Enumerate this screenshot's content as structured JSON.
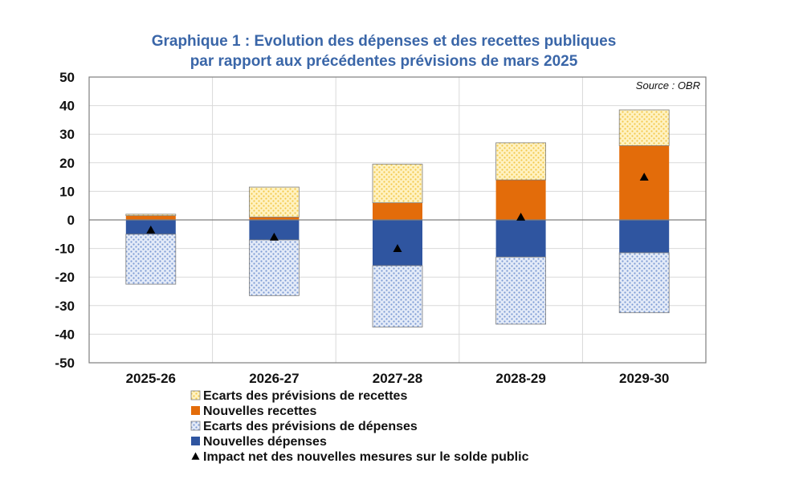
{
  "chart_data": {
    "type": "bar",
    "stacked": true,
    "title": "Graphique 1 : Evolution des dépenses et des recettes publiques",
    "subtitle": "par rapport aux précédentes prévisions de mars 2025",
    "source": "Source : OBR",
    "categories": [
      "2025-26",
      "2026-27",
      "2027-28",
      "2028-29",
      "2029-30"
    ],
    "ylim": [
      -50,
      50
    ],
    "yticks": [
      50,
      40,
      30,
      20,
      10,
      0,
      -10,
      -20,
      -30,
      -40,
      -50
    ],
    "grid": true,
    "series": [
      {
        "key": "ecarts_recettes",
        "name": "Ecarts des prévisions de recettes",
        "color": "#fde9a8",
        "pattern": "dots-yellow",
        "values": [
          0.5,
          10.5,
          13.5,
          13,
          12.5
        ]
      },
      {
        "key": "nouvelles_recettes",
        "name": "Nouvelles recettes",
        "color": "#e36c0a",
        "pattern": "solid",
        "values": [
          1.5,
          1,
          6,
          14,
          26
        ]
      },
      {
        "key": "ecarts_depenses",
        "name": "Ecarts des prévisions de dépenses",
        "color": "#c5d3ee",
        "pattern": "dots-blue",
        "values": [
          -17.5,
          -19.5,
          -21.5,
          -23.5,
          -21
        ]
      },
      {
        "key": "nouvelles_depenses",
        "name": "Nouvelles dépenses",
        "color": "#2f55a0",
        "pattern": "solid",
        "values": [
          -5,
          -7,
          -16,
          -13,
          -11.5
        ]
      }
    ],
    "impact": {
      "name": "Impact net des nouvelles mesures sur le solde public",
      "marker": "triangle",
      "color": "#000000",
      "values": [
        -3.5,
        -6,
        -10,
        1,
        15
      ]
    }
  }
}
